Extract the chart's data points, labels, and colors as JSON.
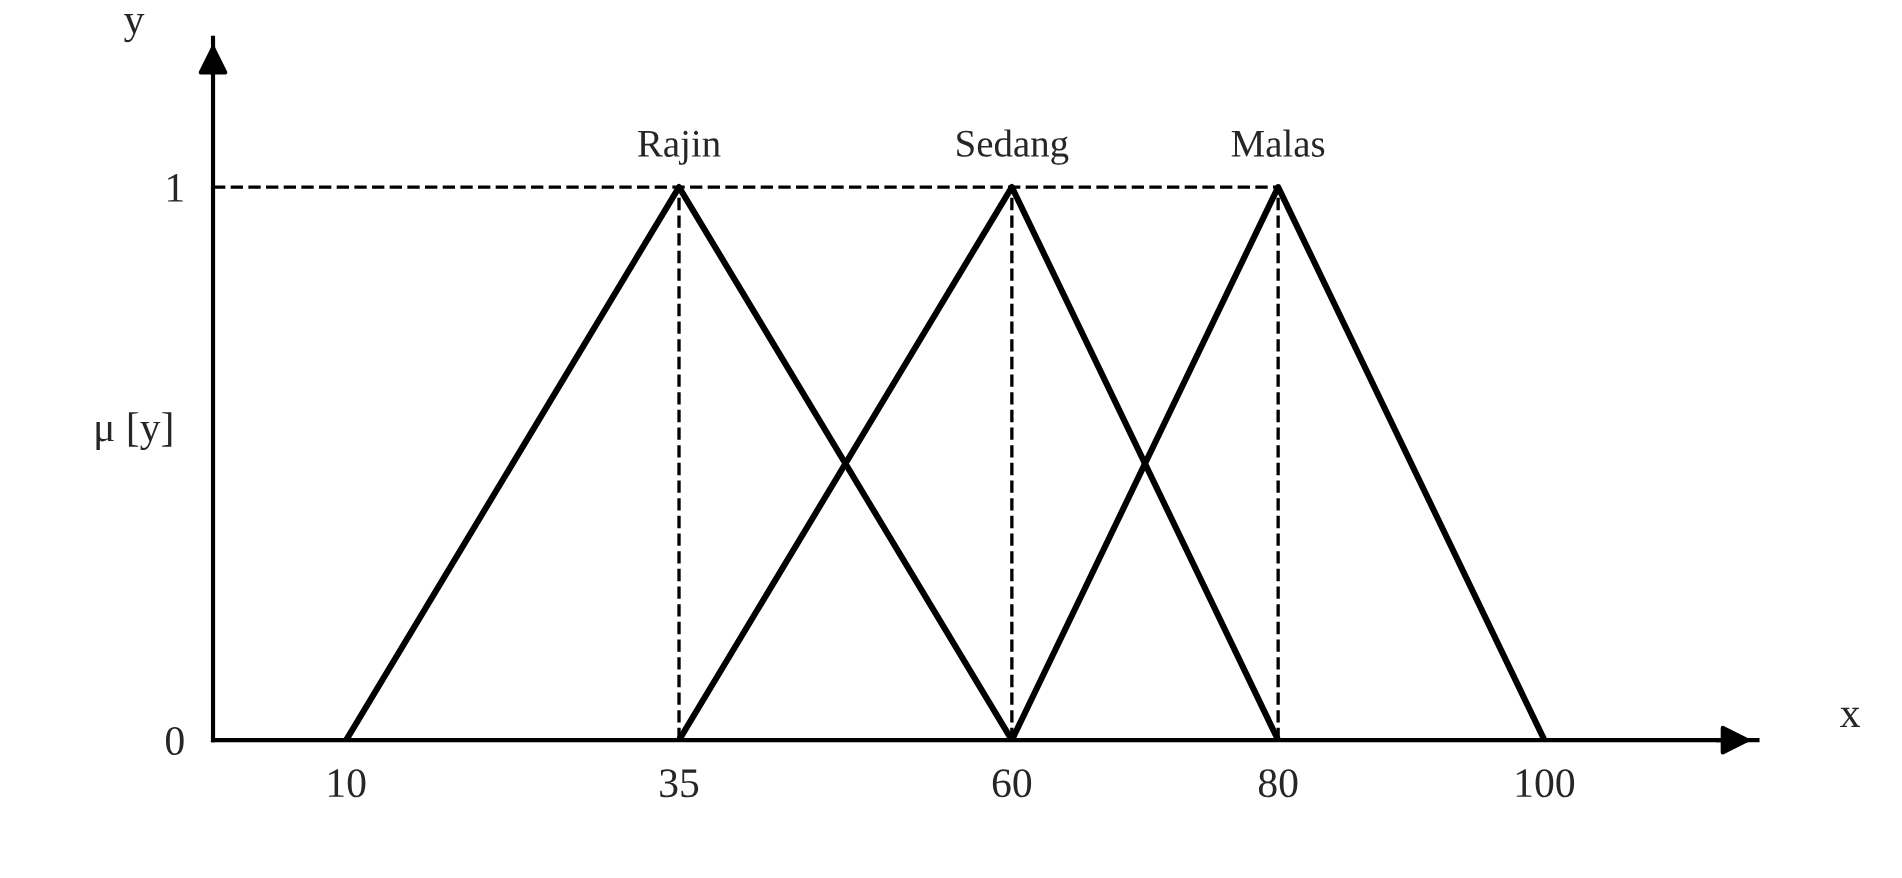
{
  "chart_data": {
    "type": "line",
    "xlabel": "x",
    "ylabel": "μ [y]",
    "annotations": [
      "y"
    ],
    "series": [
      {
        "name": "Rajin",
        "color": "#000000",
        "x": [
          10,
          35,
          60
        ],
        "values": [
          0,
          1,
          0
        ]
      },
      {
        "name": "Sedang",
        "color": "#000000",
        "x": [
          35,
          60,
          80
        ],
        "values": [
          0,
          1,
          0
        ]
      },
      {
        "name": "Malas",
        "color": "#000000",
        "x": [
          60,
          80,
          100
        ],
        "values": [
          0,
          1,
          0
        ]
      }
    ],
    "xlim": [
      0,
      116
    ],
    "xticks": [
      10,
      35,
      60,
      80,
      100
    ],
    "ylim": [
      0,
      1.27
    ],
    "yticks": [
      0,
      1
    ],
    "ref_lines": [
      {
        "axis": "y",
        "value": 1,
        "line_style": "dashed",
        "color": "#000000"
      },
      {
        "axis": "x",
        "value": 35,
        "line_style": "dashed",
        "color": "#000000"
      },
      {
        "axis": "x",
        "value": 60,
        "line_style": "dashed",
        "color": "#000000"
      },
      {
        "axis": "x",
        "value": 80,
        "line_style": "dashed",
        "color": "#000000"
      }
    ],
    "grid": false,
    "legend": false,
    "marker": "none",
    "line_style": "solid"
  }
}
